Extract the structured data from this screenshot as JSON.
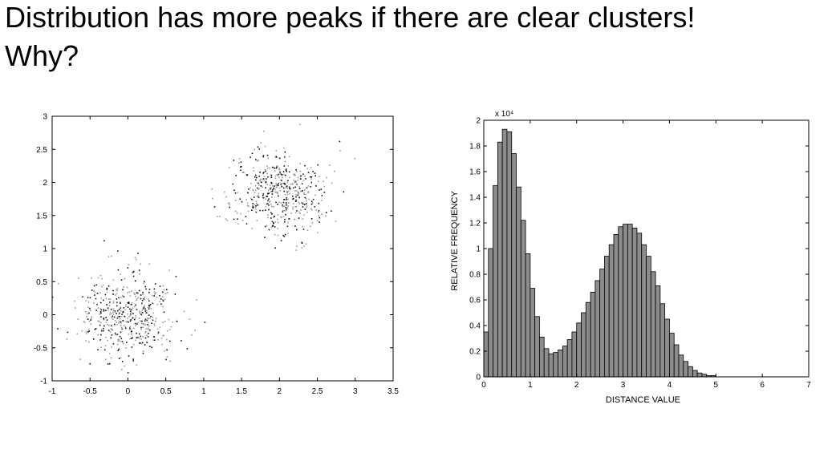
{
  "slide": {
    "title_line_1": "Distribution has more peaks if there are clear clusters!",
    "title_line_2": "Why?"
  },
  "colors": {
    "background": "#ffffff",
    "text": "#000000",
    "scatter_dark": "#111111",
    "scatter_light": "#9a9a9a",
    "bar_fill": "#8c8c8c",
    "bar_stroke": "#000000"
  },
  "chart_data": [
    {
      "type": "scatter",
      "title": "",
      "xlabel": "",
      "ylabel": "",
      "xlim": [
        -1,
        3.5
      ],
      "ylim": [
        -1,
        3
      ],
      "xticks": [
        "-1",
        "-0.5",
        "0",
        "0.5",
        "1",
        "1.5",
        "2",
        "2.5",
        "3",
        "3.5"
      ],
      "yticks": [
        "-1",
        "-0.5",
        "0",
        "0.5",
        "1",
        "1.5",
        "2",
        "2.5",
        "3"
      ],
      "grid": false,
      "clusters": [
        {
          "center": [
            0,
            0
          ],
          "spread": 0.32,
          "approx_points": 500
        },
        {
          "center": [
            2,
            1.85
          ],
          "spread": 0.32,
          "approx_points": 500
        }
      ]
    },
    {
      "type": "bar",
      "title": "",
      "xlabel": "DISTANCE VALUE",
      "ylabel": "RELATIVE FREQUENCY",
      "y_multiplier": "x 10⁴",
      "xlim": [
        0,
        7
      ],
      "ylim": [
        0,
        2
      ],
      "xticks": [
        "0",
        "1",
        "2",
        "3",
        "4",
        "5",
        "6",
        "7"
      ],
      "yticks": [
        "0",
        "0.2",
        "0.4",
        "0.6",
        "0.8",
        "1",
        "1.2",
        "1.4",
        "1.6",
        "1.8",
        "2"
      ],
      "grid": false,
      "bin_width": 0.1,
      "bin_start": 0,
      "values": [
        0.35,
        1.0,
        1.49,
        1.83,
        1.93,
        1.91,
        1.74,
        1.48,
        1.22,
        0.96,
        0.69,
        0.47,
        0.31,
        0.22,
        0.18,
        0.19,
        0.21,
        0.24,
        0.29,
        0.35,
        0.42,
        0.5,
        0.58,
        0.66,
        0.75,
        0.84,
        0.94,
        1.03,
        1.11,
        1.17,
        1.19,
        1.19,
        1.16,
        1.12,
        1.03,
        0.94,
        0.82,
        0.71,
        0.57,
        0.45,
        0.34,
        0.25,
        0.17,
        0.12,
        0.08,
        0.05,
        0.03,
        0.02,
        0.01,
        0.01
      ]
    }
  ]
}
